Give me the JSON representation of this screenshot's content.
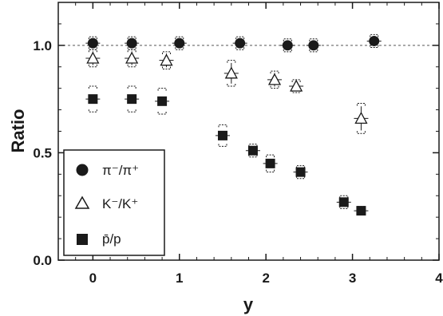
{
  "chart_data": {
    "type": "scatter",
    "xlabel": "y",
    "ylabel": "Ratio",
    "xlim": [
      -0.4,
      4.0
    ],
    "ylim": [
      0.0,
      1.2
    ],
    "xticks": [
      "0",
      "1",
      "2",
      "3",
      "4"
    ],
    "yticks": [
      "0.0",
      "0.5",
      "1.0"
    ],
    "reference_line": 1.0,
    "grid": false,
    "legend_position": "bottom-left",
    "series": [
      {
        "name": "π⁻/π⁺",
        "marker": "filled-circle",
        "points": [
          {
            "x": 0.0,
            "y": 1.01,
            "sys": 0.03
          },
          {
            "x": 0.45,
            "y": 1.01,
            "sys": 0.03
          },
          {
            "x": 1.0,
            "y": 1.01,
            "sys": 0.03
          },
          {
            "x": 1.7,
            "y": 1.01,
            "sys": 0.03
          },
          {
            "x": 2.25,
            "y": 1.0,
            "sys": 0.03
          },
          {
            "x": 2.55,
            "y": 1.0,
            "sys": 0.03
          },
          {
            "x": 3.25,
            "y": 1.02,
            "sys": 0.03
          }
        ]
      },
      {
        "name": "K⁻/K⁺",
        "marker": "open-triangle",
        "points": [
          {
            "x": 0.0,
            "y": 0.94,
            "sys": 0.04
          },
          {
            "x": 0.45,
            "y": 0.94,
            "sys": 0.04
          },
          {
            "x": 0.85,
            "y": 0.93,
            "sys": 0.04
          },
          {
            "x": 1.6,
            "y": 0.87,
            "sys": 0.06
          },
          {
            "x": 2.1,
            "y": 0.84,
            "sys": 0.04
          },
          {
            "x": 2.35,
            "y": 0.81,
            "sys": 0.03
          },
          {
            "x": 3.1,
            "y": 0.66,
            "sys": 0.07
          }
        ]
      },
      {
        "name": "p̄/p",
        "marker": "filled-square",
        "points": [
          {
            "x": 0.0,
            "y": 0.75,
            "sys": 0.06
          },
          {
            "x": 0.45,
            "y": 0.75,
            "sys": 0.06
          },
          {
            "x": 0.8,
            "y": 0.74,
            "sys": 0.06
          },
          {
            "x": 1.5,
            "y": 0.58,
            "sys": 0.05
          },
          {
            "x": 1.85,
            "y": 0.51,
            "sys": 0.03
          },
          {
            "x": 2.05,
            "y": 0.45,
            "sys": 0.04
          },
          {
            "x": 2.4,
            "y": 0.41,
            "sys": 0.03
          },
          {
            "x": 2.9,
            "y": 0.27,
            "sys": 0.03
          },
          {
            "x": 3.1,
            "y": 0.23,
            "sys": 0.02
          }
        ]
      }
    ]
  }
}
